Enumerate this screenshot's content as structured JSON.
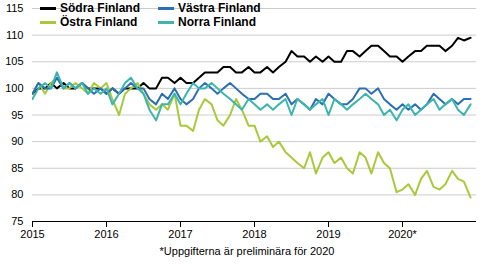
{
  "chart_data": {
    "type": "line",
    "caption": "*Uppgifterna är preliminära för 2020",
    "x": [
      2015,
      2015.08,
      2015.17,
      2015.25,
      2015.33,
      2015.42,
      2015.5,
      2015.58,
      2015.67,
      2015.75,
      2015.83,
      2015.92,
      2016,
      2016.08,
      2016.17,
      2016.25,
      2016.33,
      2016.42,
      2016.5,
      2016.58,
      2016.67,
      2016.75,
      2016.83,
      2016.92,
      2017,
      2017.08,
      2017.17,
      2017.25,
      2017.33,
      2017.42,
      2017.5,
      2017.58,
      2017.67,
      2017.75,
      2017.83,
      2017.92,
      2018,
      2018.08,
      2018.17,
      2018.25,
      2018.33,
      2018.42,
      2018.5,
      2018.58,
      2018.67,
      2018.75,
      2018.83,
      2018.92,
      2019,
      2019.08,
      2019.17,
      2019.25,
      2019.33,
      2019.42,
      2019.5,
      2019.58,
      2019.67,
      2019.75,
      2019.83,
      2019.92,
      2020,
      2020.08,
      2020.17,
      2020.25,
      2020.33,
      2020.42,
      2020.5,
      2020.58,
      2020.67,
      2020.75,
      2020.83,
      2020.92
    ],
    "series": [
      {
        "name": "Södra Finland",
        "color": "#000000",
        "values": [
          99,
          100,
          100,
          101,
          100,
          101,
          100,
          100,
          101,
          100,
          100,
          100,
          99,
          100,
          99,
          100,
          100,
          100,
          101,
          100,
          100,
          102,
          102,
          101,
          102,
          101,
          101,
          102,
          103,
          103,
          103,
          104,
          104,
          103,
          103,
          104,
          103,
          103,
          104,
          103,
          104,
          105,
          107,
          106,
          106,
          105,
          106,
          105,
          106,
          105,
          105,
          107,
          107,
          106,
          107,
          108,
          108,
          107,
          106,
          106,
          105,
          106,
          107,
          107,
          108,
          108,
          108,
          107,
          108,
          109.5,
          109,
          109.5
        ]
      },
      {
        "name": "Östra Finland",
        "color": "#a9c93a",
        "values": [
          99,
          101,
          99,
          101,
          102,
          100,
          100,
          101,
          100,
          99,
          101,
          100,
          101,
          98,
          95,
          99,
          100,
          101,
          99,
          97,
          96,
          97,
          96,
          99,
          93,
          93,
          92,
          96,
          98,
          97,
          94,
          93,
          95,
          98,
          96,
          93,
          93,
          90,
          91,
          89,
          90,
          88,
          87,
          86,
          85,
          88,
          84,
          87,
          88,
          86,
          87,
          85,
          84,
          88,
          87,
          84,
          88,
          86,
          85,
          80.5,
          81,
          82,
          80,
          83,
          84.5,
          81.5,
          81,
          82,
          84.5,
          83,
          82.5,
          79.5
        ]
      },
      {
        "name": "Västra Finland",
        "color": "#2c6fb2",
        "values": [
          99,
          101,
          100,
          100,
          102,
          100,
          101,
          100,
          101,
          100,
          99,
          100,
          99,
          100,
          99,
          100,
          101,
          100,
          100,
          98,
          97,
          99,
          98,
          100,
          98,
          97,
          98,
          100,
          101,
          100,
          99,
          100,
          101,
          100,
          99,
          98,
          98,
          99,
          99,
          98,
          98,
          99,
          97,
          98,
          97,
          96,
          98,
          97,
          99,
          98,
          97,
          97,
          98,
          100,
          100,
          99,
          100,
          98,
          97,
          96,
          97,
          96,
          97,
          96,
          97,
          99,
          98,
          97,
          98,
          97,
          98,
          98
        ]
      },
      {
        "name": "Norra Finland",
        "color": "#3bb5ad",
        "values": [
          98,
          100,
          101,
          100,
          103,
          100,
          101,
          100,
          101,
          99,
          100,
          99,
          100,
          97,
          99,
          101,
          102,
          100,
          99,
          96,
          94,
          97,
          97,
          99,
          97,
          99,
          101,
          100,
          100,
          101,
          100,
          99,
          98,
          97,
          96,
          98,
          97,
          96,
          97,
          96,
          97,
          98,
          95,
          98,
          97,
          96,
          97,
          98,
          95,
          98,
          97,
          96,
          97,
          98,
          99,
          98,
          97,
          95,
          96,
          94,
          96,
          97,
          95,
          96,
          97,
          98,
          96,
          97,
          98,
          96,
          95,
          97
        ]
      }
    ],
    "xlim": [
      2015,
      2021
    ],
    "xticks": [
      2015,
      2016,
      2017,
      2018,
      2019,
      {
        "value": 2020,
        "label": "2020*"
      }
    ],
    "ylim": [
      75,
      115
    ],
    "yticks": [
      75,
      80,
      85,
      90,
      95,
      100,
      105,
      110,
      115
    ],
    "grid": true,
    "legend": "top-left"
  }
}
